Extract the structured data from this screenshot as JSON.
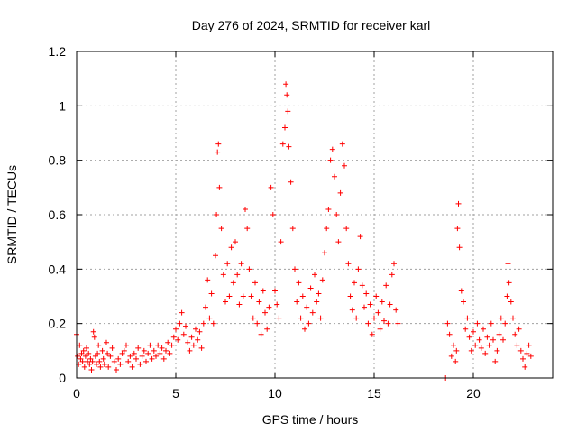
{
  "chart_data": {
    "type": "scatter",
    "title": "Day 276 of 2024, SRMTID for receiver karl",
    "xlabel": "GPS time / hours",
    "ylabel": "SRMTID / TECUs",
    "xlim": [
      0,
      24
    ],
    "ylim": [
      0,
      1.2
    ],
    "xticks": [
      0,
      5,
      10,
      15,
      20
    ],
    "xtick_labels": [
      "0",
      "5",
      "10",
      "15",
      "20"
    ],
    "yticks": [
      0,
      0.2,
      0.4,
      0.6,
      0.8,
      1.0,
      1.2
    ],
    "ytick_labels": [
      "0",
      "0.2",
      "0.4",
      "0.6",
      "0.8",
      "1",
      "1.2"
    ],
    "grid": true,
    "marker": "+",
    "color": "#ff0000",
    "series": [
      {
        "name": "SRMTID",
        "points": [
          [
            0.0,
            0.16
          ],
          [
            0.05,
            0.08
          ],
          [
            0.1,
            0.05
          ],
          [
            0.15,
            0.12
          ],
          [
            0.2,
            0.07
          ],
          [
            0.25,
            0.09
          ],
          [
            0.3,
            0.06
          ],
          [
            0.35,
            0.1
          ],
          [
            0.4,
            0.04
          ],
          [
            0.45,
            0.08
          ],
          [
            0.5,
            0.11
          ],
          [
            0.55,
            0.06
          ],
          [
            0.6,
            0.09
          ],
          [
            0.65,
            0.05
          ],
          [
            0.7,
            0.07
          ],
          [
            0.75,
            0.03
          ],
          [
            0.8,
            0.06
          ],
          [
            0.85,
            0.17
          ],
          [
            0.9,
            0.15
          ],
          [
            0.95,
            0.08
          ],
          [
            1.0,
            0.05
          ],
          [
            1.05,
            0.09
          ],
          [
            1.1,
            0.12
          ],
          [
            1.15,
            0.06
          ],
          [
            1.2,
            0.04
          ],
          [
            1.3,
            0.1
          ],
          [
            1.35,
            0.07
          ],
          [
            1.4,
            0.05
          ],
          [
            1.5,
            0.13
          ],
          [
            1.55,
            0.09
          ],
          [
            1.6,
            0.04
          ],
          [
            1.7,
            0.08
          ],
          [
            1.8,
            0.11
          ],
          [
            1.9,
            0.06
          ],
          [
            2.0,
            0.03
          ],
          [
            2.1,
            0.07
          ],
          [
            2.2,
            0.05
          ],
          [
            2.3,
            0.09
          ],
          [
            2.4,
            0.1
          ],
          [
            2.5,
            0.12
          ],
          [
            2.6,
            0.06
          ],
          [
            2.7,
            0.08
          ],
          [
            2.8,
            0.04
          ],
          [
            2.9,
            0.09
          ],
          [
            3.0,
            0.07
          ],
          [
            3.1,
            0.11
          ],
          [
            3.2,
            0.05
          ],
          [
            3.3,
            0.08
          ],
          [
            3.4,
            0.1
          ],
          [
            3.5,
            0.06
          ],
          [
            3.6,
            0.09
          ],
          [
            3.7,
            0.12
          ],
          [
            3.8,
            0.07
          ],
          [
            3.9,
            0.1
          ],
          [
            4.0,
            0.08
          ],
          [
            4.1,
            0.12
          ],
          [
            4.2,
            0.09
          ],
          [
            4.3,
            0.11
          ],
          [
            4.4,
            0.07
          ],
          [
            4.5,
            0.1
          ],
          [
            4.6,
            0.13
          ],
          [
            4.7,
            0.09
          ],
          [
            4.8,
            0.12
          ],
          [
            4.9,
            0.15
          ],
          [
            5.0,
            0.18
          ],
          [
            5.1,
            0.14
          ],
          [
            5.2,
            0.2
          ],
          [
            5.3,
            0.24
          ],
          [
            5.4,
            0.16
          ],
          [
            5.5,
            0.19
          ],
          [
            5.6,
            0.13
          ],
          [
            5.7,
            0.1
          ],
          [
            5.8,
            0.15
          ],
          [
            5.9,
            0.12
          ],
          [
            6.0,
            0.18
          ],
          [
            6.1,
            0.14
          ],
          [
            6.2,
            0.17
          ],
          [
            6.3,
            0.11
          ],
          [
            6.4,
            0.2
          ],
          [
            6.5,
            0.26
          ],
          [
            6.6,
            0.36
          ],
          [
            6.7,
            0.22
          ],
          [
            6.8,
            0.31
          ],
          [
            6.9,
            0.2
          ],
          [
            7.0,
            0.45
          ],
          [
            7.05,
            0.6
          ],
          [
            7.1,
            0.83
          ],
          [
            7.15,
            0.86
          ],
          [
            7.2,
            0.7
          ],
          [
            7.3,
            0.55
          ],
          [
            7.4,
            0.38
          ],
          [
            7.5,
            0.28
          ],
          [
            7.6,
            0.42
          ],
          [
            7.7,
            0.3
          ],
          [
            7.8,
            0.48
          ],
          [
            7.9,
            0.35
          ],
          [
            8.0,
            0.5
          ],
          [
            8.1,
            0.38
          ],
          [
            8.2,
            0.27
          ],
          [
            8.3,
            0.42
          ],
          [
            8.4,
            0.3
          ],
          [
            8.5,
            0.62
          ],
          [
            8.6,
            0.55
          ],
          [
            8.7,
            0.4
          ],
          [
            8.8,
            0.3
          ],
          [
            8.9,
            0.22
          ],
          [
            9.0,
            0.35
          ],
          [
            9.1,
            0.2
          ],
          [
            9.2,
            0.28
          ],
          [
            9.3,
            0.16
          ],
          [
            9.4,
            0.32
          ],
          [
            9.5,
            0.24
          ],
          [
            9.6,
            0.18
          ],
          [
            9.7,
            0.26
          ],
          [
            9.8,
            0.7
          ],
          [
            9.9,
            0.6
          ],
          [
            10.0,
            0.32
          ],
          [
            10.1,
            0.27
          ],
          [
            10.2,
            0.22
          ],
          [
            10.3,
            0.5
          ],
          [
            10.4,
            0.86
          ],
          [
            10.5,
            0.92
          ],
          [
            10.55,
            1.08
          ],
          [
            10.6,
            1.04
          ],
          [
            10.65,
            0.98
          ],
          [
            10.7,
            0.85
          ],
          [
            10.8,
            0.72
          ],
          [
            10.9,
            0.55
          ],
          [
            11.0,
            0.4
          ],
          [
            11.1,
            0.28
          ],
          [
            11.2,
            0.35
          ],
          [
            11.3,
            0.22
          ],
          [
            11.4,
            0.3
          ],
          [
            11.5,
            0.18
          ],
          [
            11.6,
            0.26
          ],
          [
            11.7,
            0.2
          ],
          [
            11.8,
            0.33
          ],
          [
            11.9,
            0.24
          ],
          [
            12.0,
            0.38
          ],
          [
            12.1,
            0.28
          ],
          [
            12.2,
            0.31
          ],
          [
            12.3,
            0.22
          ],
          [
            12.4,
            0.36
          ],
          [
            12.5,
            0.46
          ],
          [
            12.6,
            0.55
          ],
          [
            12.7,
            0.62
          ],
          [
            12.8,
            0.8
          ],
          [
            12.9,
            0.84
          ],
          [
            13.0,
            0.74
          ],
          [
            13.1,
            0.6
          ],
          [
            13.2,
            0.5
          ],
          [
            13.3,
            0.68
          ],
          [
            13.4,
            0.86
          ],
          [
            13.5,
            0.78
          ],
          [
            13.6,
            0.55
          ],
          [
            13.7,
            0.42
          ],
          [
            13.8,
            0.3
          ],
          [
            13.9,
            0.25
          ],
          [
            14.0,
            0.35
          ],
          [
            14.1,
            0.22
          ],
          [
            14.2,
            0.4
          ],
          [
            14.3,
            0.52
          ],
          [
            14.4,
            0.34
          ],
          [
            14.5,
            0.26
          ],
          [
            14.6,
            0.31
          ],
          [
            14.7,
            0.2
          ],
          [
            14.8,
            0.27
          ],
          [
            14.9,
            0.16
          ],
          [
            15.0,
            0.22
          ],
          [
            15.1,
            0.3
          ],
          [
            15.2,
            0.24
          ],
          [
            15.3,
            0.18
          ],
          [
            15.4,
            0.28
          ],
          [
            15.5,
            0.21
          ],
          [
            15.6,
            0.34
          ],
          [
            15.7,
            0.2
          ],
          [
            15.8,
            0.27
          ],
          [
            15.9,
            0.38
          ],
          [
            16.0,
            0.42
          ],
          [
            16.1,
            0.25
          ],
          [
            16.2,
            0.2
          ],
          [
            18.6,
            0.0
          ],
          [
            18.7,
            0.2
          ],
          [
            18.8,
            0.16
          ],
          [
            18.9,
            0.08
          ],
          [
            19.0,
            0.12
          ],
          [
            19.1,
            0.06
          ],
          [
            19.15,
            0.1
          ],
          [
            19.2,
            0.55
          ],
          [
            19.25,
            0.64
          ],
          [
            19.3,
            0.48
          ],
          [
            19.4,
            0.32
          ],
          [
            19.5,
            0.28
          ],
          [
            19.6,
            0.18
          ],
          [
            19.7,
            0.22
          ],
          [
            19.8,
            0.15
          ],
          [
            19.9,
            0.1
          ],
          [
            20.0,
            0.17
          ],
          [
            20.1,
            0.12
          ],
          [
            20.2,
            0.2
          ],
          [
            20.3,
            0.14
          ],
          [
            20.4,
            0.11
          ],
          [
            20.5,
            0.18
          ],
          [
            20.6,
            0.09
          ],
          [
            20.7,
            0.15
          ],
          [
            20.8,
            0.12
          ],
          [
            20.9,
            0.2
          ],
          [
            21.0,
            0.14
          ],
          [
            21.1,
            0.06
          ],
          [
            21.2,
            0.1
          ],
          [
            21.3,
            0.16
          ],
          [
            21.4,
            0.22
          ],
          [
            21.5,
            0.14
          ],
          [
            21.6,
            0.2
          ],
          [
            21.7,
            0.3
          ],
          [
            21.75,
            0.42
          ],
          [
            21.8,
            0.35
          ],
          [
            21.9,
            0.28
          ],
          [
            22.0,
            0.22
          ],
          [
            22.1,
            0.16
          ],
          [
            22.2,
            0.12
          ],
          [
            22.3,
            0.18
          ],
          [
            22.4,
            0.1
          ],
          [
            22.5,
            0.07
          ],
          [
            22.6,
            0.04
          ],
          [
            22.7,
            0.09
          ],
          [
            22.8,
            0.12
          ],
          [
            22.9,
            0.08
          ]
        ]
      }
    ]
  }
}
